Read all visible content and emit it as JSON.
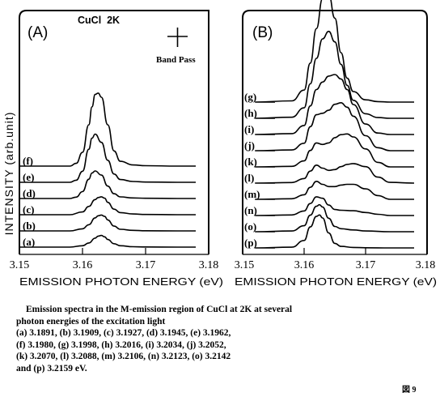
{
  "chart_data": [
    {
      "type": "line",
      "panel_label": "(A)",
      "annotation": "CuCl  2K",
      "bandpass_label": "Band Pass",
      "ylabel": "INTENSITY (arb.unit)",
      "xlabel": "EMISSION PHOTON ENERGY (eV)",
      "xlim": [
        3.15,
        3.18
      ],
      "xticks": [
        "3.15",
        "3.16",
        "3.17",
        "3.18"
      ],
      "series": [
        {
          "label": "(a)",
          "x": [
            3.15,
            3.158,
            3.16,
            3.161,
            3.162,
            3.1625,
            3.163,
            3.1635,
            3.164,
            3.165,
            3.166,
            3.168,
            3.17,
            3.175
          ],
          "y": [
            0,
            0,
            0.1,
            0.3,
            0.65,
            0.8,
            0.85,
            0.75,
            0.55,
            0.25,
            0.1,
            0.03,
            0.01,
            0
          ]
        },
        {
          "label": "(b)",
          "x": [
            3.15,
            3.158,
            3.16,
            3.161,
            3.162,
            3.1625,
            3.163,
            3.1635,
            3.164,
            3.165,
            3.166,
            3.168,
            3.17,
            3.175
          ],
          "y": [
            0,
            0,
            0.15,
            0.45,
            0.95,
            1.1,
            1.15,
            1.05,
            0.8,
            0.35,
            0.12,
            0.04,
            0.01,
            0
          ]
        },
        {
          "label": "(c)",
          "x": [
            3.15,
            3.158,
            3.16,
            3.161,
            3.162,
            3.1625,
            3.163,
            3.1635,
            3.164,
            3.165,
            3.166,
            3.168,
            3.17,
            3.175
          ],
          "y": [
            0,
            0,
            0.2,
            0.6,
            1.1,
            1.25,
            1.3,
            1.2,
            0.9,
            0.4,
            0.15,
            0.05,
            0.02,
            0
          ]
        },
        {
          "label": "(d)",
          "x": [
            3.15,
            3.158,
            3.159,
            3.16,
            3.161,
            3.1615,
            3.162,
            3.163,
            3.164,
            3.165,
            3.166,
            3.168,
            3.17,
            3.175
          ],
          "y": [
            0,
            0,
            0.1,
            0.5,
            1.4,
            1.85,
            2.0,
            1.7,
            0.9,
            0.35,
            0.12,
            0.04,
            0.02,
            0
          ]
        },
        {
          "label": "(e)",
          "x": [
            3.15,
            3.158,
            3.159,
            3.16,
            3.161,
            3.1615,
            3.162,
            3.163,
            3.164,
            3.165,
            3.166,
            3.168,
            3.17,
            3.175
          ],
          "y": [
            0,
            0,
            0.15,
            0.8,
            2.4,
            3.2,
            3.5,
            2.9,
            1.6,
            0.6,
            0.2,
            0.06,
            0.02,
            0
          ]
        },
        {
          "label": "(f)",
          "x": [
            3.15,
            3.158,
            3.159,
            3.16,
            3.161,
            3.1615,
            3.162,
            3.1625,
            3.163,
            3.164,
            3.165,
            3.166,
            3.168,
            3.17,
            3.175
          ],
          "y": [
            0,
            0,
            0.2,
            1.0,
            3.0,
            4.3,
            5.2,
            5.3,
            5.0,
            3.0,
            1.1,
            0.35,
            0.08,
            0.03,
            0
          ]
        }
      ]
    },
    {
      "type": "line",
      "panel_label": "(B)",
      "xlabel": "EMISSION PHOTON ENERGY (eV)",
      "xlim": [
        3.15,
        3.18
      ],
      "xticks": [
        "3.15",
        "3.16",
        "3.17",
        "3.18"
      ],
      "series": [
        {
          "label": "(p)",
          "x": [
            3.152,
            3.158,
            3.16,
            3.161,
            3.162,
            3.1625,
            3.163,
            3.164,
            3.165,
            3.166,
            3.168,
            3.17,
            3.174
          ],
          "y": [
            0,
            0.05,
            0.5,
            1.4,
            2.1,
            2.2,
            2.0,
            1.0,
            0.3,
            0.1,
            0.03,
            0.01,
            0
          ]
        },
        {
          "label": "(o)",
          "x": [
            3.152,
            3.158,
            3.16,
            3.161,
            3.162,
            3.1625,
            3.163,
            3.164,
            3.165,
            3.166,
            3.168,
            3.17,
            3.174
          ],
          "y": [
            0,
            0.05,
            0.4,
            1.1,
            1.7,
            1.8,
            1.65,
            0.9,
            0.35,
            0.2,
            0.12,
            0.05,
            0
          ]
        },
        {
          "label": "(n)",
          "x": [
            3.152,
            3.158,
            3.16,
            3.161,
            3.162,
            3.163,
            3.164,
            3.165,
            3.166,
            3.168,
            3.17,
            3.172,
            3.174
          ],
          "y": [
            0,
            0.04,
            0.3,
            0.8,
            1.25,
            1.15,
            0.7,
            0.4,
            0.35,
            0.32,
            0.2,
            0.08,
            0
          ]
        },
        {
          "label": "(m)",
          "x": [
            3.152,
            3.158,
            3.16,
            3.161,
            3.162,
            3.163,
            3.164,
            3.165,
            3.166,
            3.167,
            3.168,
            3.17,
            3.172,
            3.174
          ],
          "y": [
            0,
            0.04,
            0.3,
            0.8,
            1.2,
            1.0,
            0.85,
            0.85,
            0.95,
            1.0,
            1.0,
            0.7,
            0.25,
            0
          ]
        },
        {
          "label": "(l)",
          "x": [
            3.152,
            3.158,
            3.16,
            3.161,
            3.162,
            3.163,
            3.164,
            3.165,
            3.166,
            3.167,
            3.168,
            3.17,
            3.172,
            3.174
          ],
          "y": [
            0,
            0.04,
            0.3,
            0.8,
            1.2,
            1.0,
            0.85,
            0.9,
            1.1,
            1.25,
            1.3,
            1.1,
            0.4,
            0.05
          ]
        },
        {
          "label": "(k)",
          "x": [
            3.152,
            3.158,
            3.16,
            3.161,
            3.162,
            3.163,
            3.164,
            3.165,
            3.166,
            3.167,
            3.168,
            3.17,
            3.172,
            3.174
          ],
          "y": [
            0,
            0.04,
            0.4,
            1.1,
            1.6,
            1.5,
            1.6,
            1.95,
            2.15,
            2.2,
            2.0,
            1.2,
            0.3,
            0
          ]
        },
        {
          "label": "(j)",
          "x": [
            3.152,
            3.158,
            3.16,
            3.161,
            3.162,
            3.163,
            3.164,
            3.165,
            3.166,
            3.167,
            3.168,
            3.17,
            3.172,
            3.174
          ],
          "y": [
            0,
            0.05,
            0.5,
            1.6,
            2.4,
            2.5,
            2.7,
            3.1,
            3.2,
            2.9,
            2.3,
            1.0,
            0.2,
            0
          ]
        },
        {
          "label": "(i)",
          "x": [
            3.152,
            3.158,
            3.16,
            3.161,
            3.162,
            3.163,
            3.164,
            3.165,
            3.166,
            3.167,
            3.168,
            3.17,
            3.172,
            3.174
          ],
          "y": [
            0,
            0.06,
            0.6,
            1.9,
            3.0,
            3.5,
            3.9,
            4.0,
            3.7,
            3.0,
            2.0,
            0.7,
            0.1,
            0
          ]
        },
        {
          "label": "(h)",
          "x": [
            3.152,
            3.158,
            3.16,
            3.161,
            3.162,
            3.163,
            3.164,
            3.165,
            3.166,
            3.167,
            3.168,
            3.17,
            3.172,
            3.174
          ],
          "y": [
            0,
            0.07,
            0.7,
            2.3,
            4.0,
            5.3,
            5.8,
            5.1,
            3.6,
            2.2,
            1.2,
            0.3,
            0.05,
            0
          ]
        },
        {
          "label": "(g)",
          "x": [
            3.152,
            3.158,
            3.16,
            3.161,
            3.162,
            3.163,
            3.164,
            3.165,
            3.166,
            3.167,
            3.168,
            3.17,
            3.172,
            3.174
          ],
          "y": [
            0,
            0.08,
            0.8,
            2.6,
            4.9,
            6.9,
            7.2,
            5.6,
            3.3,
            1.6,
            0.7,
            0.15,
            0.03,
            0
          ]
        }
      ]
    }
  ],
  "caption_lines": [
    "Emission spectra in the M-emission region of CuCl at 2K at several",
    "photon energies of the excitation light",
    "(a) 3.1891, (b) 3.1909, (c) 3.1927, (d) 3.1945, (e) 3.1962,",
    "(f) 3.1980, (g) 3.1998, (h) 3.2016, (i) 3.2034, (j) 3.2052,",
    "(k) 3.2070, (l) 3.2088, (m) 3.2106, (n) 3.2123, (o) 3.2142",
    "and (p) 3.2159 eV."
  ],
  "figure_tag": "図 9"
}
